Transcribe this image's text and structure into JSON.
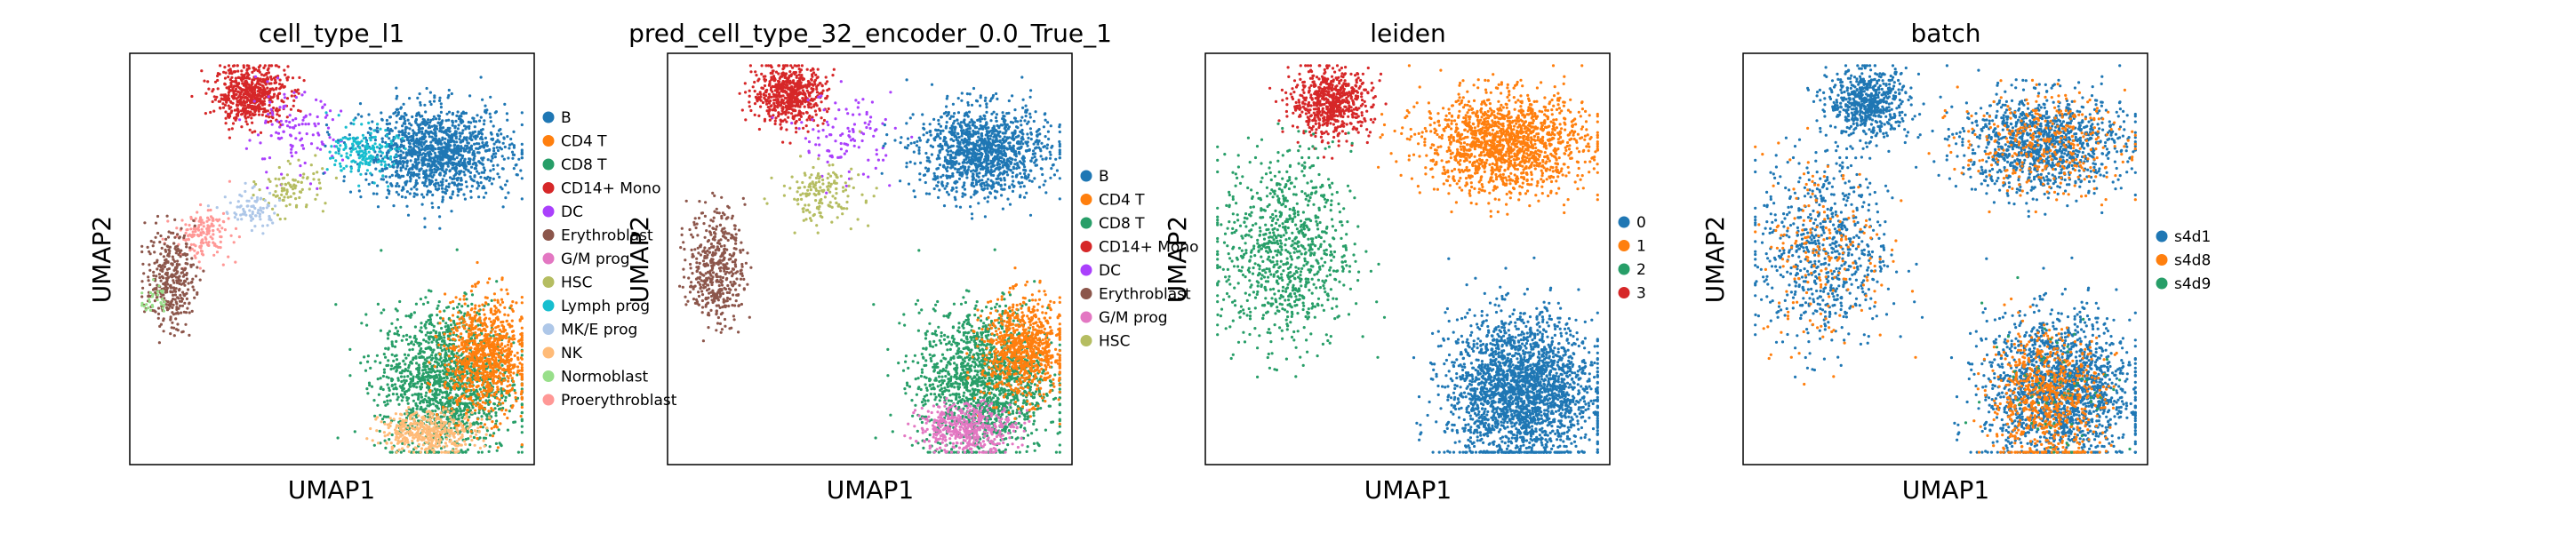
{
  "chart_data": [
    {
      "type": "scatter",
      "title": "cell_type_l1",
      "xlabel": "UMAP1",
      "ylabel": "UMAP2",
      "grid": false,
      "legend": "right",
      "categories": [
        "B",
        "CD4 T",
        "CD8 T",
        "CD14+ Mono",
        "DC",
        "Erythroblast",
        "G/M prog",
        "HSC",
        "Lymph prog",
        "MK/E prog",
        "NK",
        "Normoblast",
        "Proerythroblast"
      ],
      "colors": [
        "#1f77b4",
        "#ff7f0e",
        "#279e68",
        "#d62728",
        "#aa40fc",
        "#8c564b",
        "#e377c2",
        "#b5bd61",
        "#17becf",
        "#aec7e8",
        "#ffbb78",
        "#98df8a",
        "#ff9896"
      ],
      "clusters": [
        {
          "category": "CD14+ Mono",
          "cx": 0.3,
          "cy": 0.9,
          "sx": 0.045,
          "sy": 0.035,
          "n": 600
        },
        {
          "category": "DC",
          "cx": 0.4,
          "cy": 0.8,
          "sx": 0.06,
          "sy": 0.05,
          "n": 120
        },
        {
          "category": "B",
          "cx": 0.76,
          "cy": 0.76,
          "sx": 0.09,
          "sy": 0.055,
          "n": 1300
        },
        {
          "category": "Lymph prog",
          "cx": 0.58,
          "cy": 0.76,
          "sx": 0.04,
          "sy": 0.03,
          "n": 180
        },
        {
          "category": "HSC",
          "cx": 0.4,
          "cy": 0.67,
          "sx": 0.04,
          "sy": 0.03,
          "n": 90
        },
        {
          "category": "MK/E prog",
          "cx": 0.3,
          "cy": 0.62,
          "sx": 0.035,
          "sy": 0.025,
          "n": 80
        },
        {
          "category": "Proerythroblast",
          "cx": 0.18,
          "cy": 0.56,
          "sx": 0.035,
          "sy": 0.03,
          "n": 160
        },
        {
          "category": "Erythroblast",
          "cx": 0.1,
          "cy": 0.45,
          "sx": 0.03,
          "sy": 0.06,
          "n": 350
        },
        {
          "category": "Normoblast",
          "cx": 0.06,
          "cy": 0.4,
          "sx": 0.015,
          "sy": 0.02,
          "n": 30
        },
        {
          "category": "CD8 T",
          "cx": 0.78,
          "cy": 0.2,
          "sx": 0.08,
          "sy": 0.09,
          "n": 1500
        },
        {
          "category": "CD4 T",
          "cx": 0.88,
          "cy": 0.26,
          "sx": 0.05,
          "sy": 0.07,
          "n": 900
        },
        {
          "category": "NK",
          "cx": 0.74,
          "cy": 0.08,
          "sx": 0.06,
          "sy": 0.025,
          "n": 400
        }
      ]
    },
    {
      "type": "scatter",
      "title": "pred_cell_type_32_encoder_0.0_True_1",
      "xlabel": "UMAP1",
      "ylabel": "UMAP2",
      "grid": false,
      "legend": "right",
      "categories": [
        "B",
        "CD4 T",
        "CD8 T",
        "CD14+ Mono",
        "DC",
        "Erythroblast",
        "G/M prog",
        "HSC"
      ],
      "colors": [
        "#1f77b4",
        "#ff7f0e",
        "#279e68",
        "#d62728",
        "#aa40fc",
        "#8c564b",
        "#e377c2",
        "#b5bd61"
      ],
      "clusters": [
        {
          "category": "CD14+ Mono",
          "cx": 0.3,
          "cy": 0.9,
          "sx": 0.045,
          "sy": 0.035,
          "n": 600
        },
        {
          "category": "DC",
          "cx": 0.44,
          "cy": 0.8,
          "sx": 0.06,
          "sy": 0.05,
          "n": 110
        },
        {
          "category": "B",
          "cx": 0.78,
          "cy": 0.76,
          "sx": 0.08,
          "sy": 0.055,
          "n": 1200
        },
        {
          "category": "HSC",
          "cx": 0.38,
          "cy": 0.66,
          "sx": 0.05,
          "sy": 0.035,
          "n": 160
        },
        {
          "category": "Erythroblast",
          "cx": 0.12,
          "cy": 0.48,
          "sx": 0.035,
          "sy": 0.07,
          "n": 450
        },
        {
          "category": "CD8 T",
          "cx": 0.78,
          "cy": 0.2,
          "sx": 0.08,
          "sy": 0.09,
          "n": 1500
        },
        {
          "category": "CD4 T",
          "cx": 0.88,
          "cy": 0.28,
          "sx": 0.05,
          "sy": 0.06,
          "n": 800
        },
        {
          "category": "G/M prog",
          "cx": 0.74,
          "cy": 0.09,
          "sx": 0.06,
          "sy": 0.03,
          "n": 450
        }
      ]
    },
    {
      "type": "scatter",
      "title": "leiden",
      "xlabel": "UMAP1",
      "ylabel": "UMAP2",
      "grid": false,
      "legend": "right",
      "categories": [
        "0",
        "1",
        "2",
        "3"
      ],
      "colors": [
        "#1f77b4",
        "#ff7f0e",
        "#279e68",
        "#d62728"
      ],
      "clusters": [
        {
          "category": "3",
          "cx": 0.31,
          "cy": 0.88,
          "sx": 0.05,
          "sy": 0.04,
          "n": 650
        },
        {
          "category": "1",
          "cx": 0.74,
          "cy": 0.78,
          "sx": 0.1,
          "sy": 0.06,
          "n": 1500
        },
        {
          "category": "2",
          "cx": 0.2,
          "cy": 0.52,
          "sx": 0.08,
          "sy": 0.12,
          "n": 900
        },
        {
          "category": "0",
          "cx": 0.78,
          "cy": 0.18,
          "sx": 0.09,
          "sy": 0.09,
          "n": 2400
        }
      ]
    },
    {
      "type": "scatter",
      "title": "batch",
      "xlabel": "UMAP1",
      "ylabel": "UMAP2",
      "grid": false,
      "legend": "right",
      "categories": [
        "s4d1",
        "s4d8",
        "s4d9"
      ],
      "colors": [
        "#1f77b4",
        "#ff7f0e",
        "#279e68"
      ],
      "clusters": [
        {
          "category": "s4d1",
          "cx": 0.31,
          "cy": 0.88,
          "sx": 0.05,
          "sy": 0.04,
          "n": 600
        },
        {
          "category": "s4d1",
          "cx": 0.74,
          "cy": 0.78,
          "sx": 0.1,
          "sy": 0.06,
          "n": 1100
        },
        {
          "category": "s4d8",
          "cx": 0.74,
          "cy": 0.78,
          "sx": 0.1,
          "sy": 0.06,
          "n": 350
        },
        {
          "category": "s4d1",
          "cx": 0.2,
          "cy": 0.52,
          "sx": 0.08,
          "sy": 0.12,
          "n": 700
        },
        {
          "category": "s4d8",
          "cx": 0.2,
          "cy": 0.52,
          "sx": 0.08,
          "sy": 0.12,
          "n": 200
        },
        {
          "category": "s4d1",
          "cx": 0.78,
          "cy": 0.18,
          "sx": 0.09,
          "sy": 0.09,
          "n": 1700
        },
        {
          "category": "s4d8",
          "cx": 0.75,
          "cy": 0.16,
          "sx": 0.07,
          "sy": 0.08,
          "n": 700
        },
        {
          "category": "s4d9",
          "cx": 0.78,
          "cy": 0.2,
          "sx": 0.09,
          "sy": 0.09,
          "n": 60
        }
      ]
    }
  ]
}
